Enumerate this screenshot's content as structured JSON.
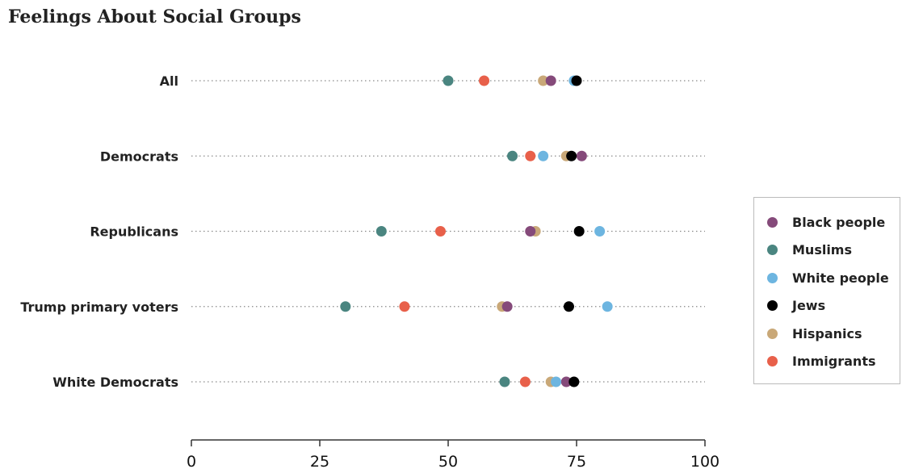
{
  "title": "Feelings About Social Groups",
  "chart_data": {
    "type": "scatter",
    "title": "Feelings About Social Groups",
    "xlim": [
      0,
      100
    ],
    "xticks": [
      0,
      25,
      50,
      75,
      100
    ],
    "categories": [
      "All",
      "Democrats",
      "Republicans",
      "Trump primary voters",
      "White Democrats"
    ],
    "series": [
      {
        "name": "Muslims",
        "color": "#4a8580",
        "values": [
          50,
          62.5,
          37,
          30,
          61
        ]
      },
      {
        "name": "Immigrants",
        "color": "#e8604a",
        "values": [
          57,
          66,
          48.5,
          41.5,
          65
        ]
      },
      {
        "name": "Hispanics",
        "color": "#c9a878",
        "values": [
          68.5,
          73,
          67,
          60.5,
          70
        ]
      },
      {
        "name": "Black people",
        "color": "#854a7a",
        "values": [
          70,
          76,
          66,
          61.5,
          73
        ]
      },
      {
        "name": "White people",
        "color": "#6db5e0",
        "values": [
          74.5,
          68.5,
          79.5,
          81,
          71
        ]
      },
      {
        "name": "Jews",
        "color": "#000000",
        "values": [
          75,
          74,
          75.5,
          73.5,
          74.5
        ]
      }
    ],
    "legend_order": [
      "Black people",
      "Muslims",
      "White people",
      "Jews",
      "Hispanics",
      "Immigrants"
    ],
    "legend_position": "right",
    "grid": "dotted row lines"
  }
}
